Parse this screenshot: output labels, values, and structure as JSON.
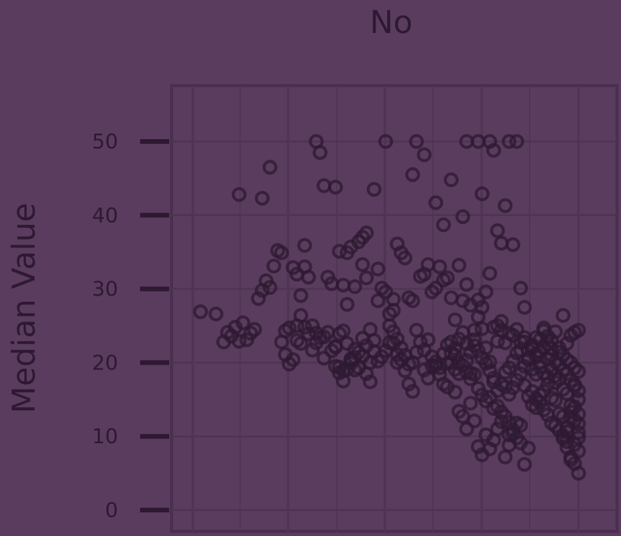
{
  "chart_data": {
    "type": "scatter",
    "title": "No",
    "ylabel": "Median Value",
    "xlabel": "",
    "ylim": [
      0,
      55
    ],
    "xlim": [
      0,
      100
    ],
    "yticks": [
      0,
      10,
      20,
      30,
      40,
      50
    ],
    "ytick_labels": [
      "0",
      "10",
      "20",
      "30",
      "40",
      "50"
    ],
    "grid": true,
    "colors": {
      "background": "#5a3d5e",
      "panel_border": "#4b2f50",
      "grid": "#4f3454",
      "point": "#2e1932",
      "text": "#2e1932"
    },
    "points": [
      [
        6,
        26.6
      ],
      [
        9,
        24.1
      ],
      [
        10,
        23.6
      ],
      [
        11,
        24.8
      ],
      [
        12,
        22.9
      ],
      [
        13,
        25.4
      ],
      [
        14,
        23.1
      ],
      [
        15,
        24.0
      ],
      [
        16,
        24.5
      ],
      [
        17,
        28.7
      ],
      [
        18,
        29.8
      ],
      [
        19,
        31.1
      ],
      [
        20,
        30.2
      ],
      [
        21,
        33.1
      ],
      [
        22,
        35.2
      ],
      [
        23,
        34.9
      ],
      [
        24,
        24.3
      ],
      [
        25,
        24.7
      ],
      [
        27,
        25.0
      ],
      [
        28,
        26.4
      ],
      [
        29,
        33.0
      ],
      [
        30,
        31.6
      ],
      [
        31,
        21.7
      ],
      [
        32,
        22.7
      ],
      [
        33,
        23.4
      ],
      [
        34,
        20.6
      ],
      [
        35,
        31.6
      ],
      [
        36,
        30.7
      ],
      [
        37,
        22.2
      ],
      [
        38,
        19.4
      ],
      [
        39,
        18.9
      ],
      [
        40,
        27.9
      ],
      [
        41,
        20.3
      ],
      [
        42,
        19.0
      ],
      [
        43,
        36.4
      ],
      [
        44,
        37.0
      ],
      [
        45,
        37.6
      ],
      [
        46,
        17.4
      ],
      [
        47,
        23.0
      ],
      [
        48,
        28.4
      ],
      [
        49,
        30.1
      ],
      [
        50,
        29.6
      ],
      [
        51,
        25.0
      ],
      [
        52,
        27.1
      ],
      [
        53,
        20.0
      ],
      [
        54,
        22.0
      ],
      [
        55,
        18.9
      ],
      [
        56,
        17.1
      ],
      [
        57,
        16.1
      ],
      [
        58,
        24.4
      ],
      [
        59,
        31.7
      ],
      [
        60,
        32.0
      ],
      [
        61,
        33.3
      ],
      [
        62,
        19.6
      ],
      [
        63,
        20.1
      ],
      [
        64,
        19.3
      ],
      [
        65,
        21.2
      ],
      [
        66,
        19.9
      ],
      [
        67,
        22.8
      ],
      [
        68,
        21.9
      ],
      [
        69,
        23.2
      ],
      [
        70,
        24.1
      ],
      [
        71,
        20.3
      ],
      [
        72,
        18.6
      ],
      [
        73,
        23.1
      ],
      [
        74,
        28.5
      ],
      [
        75,
        24.6
      ],
      [
        76,
        22.0
      ],
      [
        77,
        20.1
      ],
      [
        78,
        17.4
      ],
      [
        79,
        25.0
      ],
      [
        80,
        24.4
      ],
      [
        81,
        16.7
      ],
      [
        82,
        10.2
      ],
      [
        83,
        23.7
      ],
      [
        84,
        24.5
      ],
      [
        85,
        21.7
      ],
      [
        86,
        22.8
      ],
      [
        87,
        20.4
      ],
      [
        88,
        22.4
      ],
      [
        89,
        23.4
      ],
      [
        90,
        23.1
      ],
      [
        91,
        24.7
      ],
      [
        92,
        22.5
      ],
      [
        93,
        21.0
      ],
      [
        94,
        18.2
      ],
      [
        95,
        21.4
      ],
      [
        96,
        26.4
      ],
      [
        97,
        22.6
      ],
      [
        98,
        23.7
      ],
      [
        99,
        24.1
      ],
      [
        100,
        24.4
      ],
      [
        2,
        26.9
      ],
      [
        8,
        22.8
      ],
      [
        12,
        42.8
      ],
      [
        18,
        42.3
      ],
      [
        20,
        46.5
      ],
      [
        32,
        50.0
      ],
      [
        33,
        48.5
      ],
      [
        34,
        44.0
      ],
      [
        37,
        43.8
      ],
      [
        47,
        43.5
      ],
      [
        50,
        50.0
      ],
      [
        57,
        45.5
      ],
      [
        58,
        50.0
      ],
      [
        60,
        48.2
      ],
      [
        63,
        41.7
      ],
      [
        65,
        38.7
      ],
      [
        67,
        44.8
      ],
      [
        70,
        39.8
      ],
      [
        71,
        50.0
      ],
      [
        74,
        50.0
      ],
      [
        75,
        42.9
      ],
      [
        77,
        50.0
      ],
      [
        78,
        48.8
      ],
      [
        79,
        37.9
      ],
      [
        80,
        36.2
      ],
      [
        81,
        41.3
      ],
      [
        82,
        50.0
      ],
      [
        83,
        36.0
      ],
      [
        84,
        50.0
      ],
      [
        85,
        30.1
      ],
      [
        86,
        27.5
      ],
      [
        26,
        32.9
      ],
      [
        27,
        32.0
      ],
      [
        28,
        29.1
      ],
      [
        29,
        35.9
      ],
      [
        38,
        35.1
      ],
      [
        39,
        30.5
      ],
      [
        40,
        34.9
      ],
      [
        41,
        35.7
      ],
      [
        42,
        30.3
      ],
      [
        44,
        33.3
      ],
      [
        45,
        31.5
      ],
      [
        48,
        32.7
      ],
      [
        51,
        26.6
      ],
      [
        52,
        28.6
      ],
      [
        53,
        36.1
      ],
      [
        54,
        34.9
      ],
      [
        55,
        34.2
      ],
      [
        56,
        28.8
      ],
      [
        57,
        28.4
      ],
      [
        62,
        29.6
      ],
      [
        63,
        30.1
      ],
      [
        64,
        33.0
      ],
      [
        65,
        31.2
      ],
      [
        66,
        31.5
      ],
      [
        67,
        28.8
      ],
      [
        68,
        25.8
      ],
      [
        69,
        33.2
      ],
      [
        70,
        28.4
      ],
      [
        71,
        30.6
      ],
      [
        72,
        27.8
      ],
      [
        73,
        24.4
      ],
      [
        74,
        26.2
      ],
      [
        75,
        27.5
      ],
      [
        76,
        29.6
      ],
      [
        77,
        32.1
      ],
      [
        78,
        24.8
      ],
      [
        79,
        22.9
      ],
      [
        80,
        25.6
      ],
      [
        81,
        22.7
      ],
      [
        82,
        24.0
      ],
      [
        66,
        22.4
      ],
      [
        67,
        21.3
      ],
      [
        68,
        21.0
      ],
      [
        69,
        20.0
      ],
      [
        70,
        19.6
      ],
      [
        71,
        18.7
      ],
      [
        72,
        17.8
      ],
      [
        73,
        18.4
      ],
      [
        74,
        16.5
      ],
      [
        75,
        15.6
      ],
      [
        76,
        14.8
      ],
      [
        77,
        15.3
      ],
      [
        78,
        13.8
      ],
      [
        79,
        14.1
      ],
      [
        80,
        13.3
      ],
      [
        81,
        12.7
      ],
      [
        82,
        11.9
      ],
      [
        83,
        10.4
      ],
      [
        84,
        9.8
      ],
      [
        85,
        11.5
      ],
      [
        68,
        16.0
      ],
      [
        69,
        13.4
      ],
      [
        70,
        12.7
      ],
      [
        71,
        11.0
      ],
      [
        72,
        14.5
      ],
      [
        73,
        12.1
      ],
      [
        74,
        8.6
      ],
      [
        75,
        7.5
      ],
      [
        76,
        10.2
      ],
      [
        77,
        8.3
      ],
      [
        78,
        9.5
      ],
      [
        79,
        11.0
      ],
      [
        80,
        12.0
      ],
      [
        81,
        7.2
      ],
      [
        82,
        8.8
      ],
      [
        83,
        10.9
      ],
      [
        84,
        11.8
      ],
      [
        85,
        9.1
      ],
      [
        86,
        6.2
      ],
      [
        87,
        8.4
      ],
      [
        88,
        14.3
      ],
      [
        89,
        13.9
      ],
      [
        90,
        15.6
      ],
      [
        91,
        16.1
      ],
      [
        92,
        17.0
      ],
      [
        93,
        15.2
      ],
      [
        94,
        14.9
      ],
      [
        95,
        13.1
      ],
      [
        96,
        12.7
      ],
      [
        97,
        11.2
      ],
      [
        89,
        20.8
      ],
      [
        90,
        19.4
      ],
      [
        91,
        18.6
      ],
      [
        92,
        18.0
      ],
      [
        93,
        19.1
      ],
      [
        94,
        17.3
      ],
      [
        95,
        17.8
      ],
      [
        96,
        16.4
      ],
      [
        97,
        15.8
      ],
      [
        98,
        14.2
      ],
      [
        99,
        17.0
      ],
      [
        100,
        16.2
      ],
      [
        98,
        13.3
      ],
      [
        99,
        12.2
      ],
      [
        100,
        10.5
      ],
      [
        96,
        9.7
      ],
      [
        97,
        8.5
      ],
      [
        98,
        7.2
      ],
      [
        99,
        6.3
      ],
      [
        100,
        5.0
      ],
      [
        90,
        21.5
      ],
      [
        91,
        22.1
      ],
      [
        92,
        20.5
      ],
      [
        93,
        21.9
      ],
      [
        94,
        20.1
      ],
      [
        95,
        19.8
      ],
      [
        96,
        19.0
      ],
      [
        97,
        18.5
      ],
      [
        98,
        17.6
      ],
      [
        99,
        16.8
      ],
      [
        100,
        15.0
      ],
      [
        99,
        14.0
      ],
      [
        100,
        13.0
      ],
      [
        98,
        12.4
      ],
      [
        100,
        11.7
      ],
      [
        97,
        10.6
      ],
      [
        100,
        9.8
      ],
      [
        99,
        8.9
      ],
      [
        100,
        8.0
      ],
      [
        98,
        6.8
      ],
      [
        91,
        24.3
      ],
      [
        92,
        23.6
      ],
      [
        93,
        23.0
      ],
      [
        94,
        24.2
      ],
      [
        95,
        22.0
      ],
      [
        96,
        21.0
      ],
      [
        97,
        20.4
      ],
      [
        98,
        20.0
      ],
      [
        99,
        19.3
      ],
      [
        100,
        18.8
      ],
      [
        85,
        18.5
      ],
      [
        86,
        19.5
      ],
      [
        87,
        20.6
      ],
      [
        88,
        19.1
      ],
      [
        89,
        18.4
      ],
      [
        84,
        17.6
      ],
      [
        83,
        16.6
      ],
      [
        82,
        15.7
      ],
      [
        86,
        16.9
      ],
      [
        87,
        15.4
      ],
      [
        88,
        16.1
      ],
      [
        89,
        15.1
      ],
      [
        90,
        14.6
      ],
      [
        91,
        13.6
      ],
      [
        92,
        12.9
      ],
      [
        93,
        11.8
      ],
      [
        94,
        11.4
      ],
      [
        95,
        10.8
      ],
      [
        96,
        10.1
      ],
      [
        97,
        9.3
      ],
      [
        60,
        21.7
      ],
      [
        61,
        23.1
      ],
      [
        62,
        20.8
      ],
      [
        63,
        19.6
      ],
      [
        64,
        18.4
      ],
      [
        65,
        17.1
      ],
      [
        66,
        16.7
      ],
      [
        67,
        20.0
      ],
      [
        68,
        19.1
      ],
      [
        69,
        18.5
      ],
      [
        52,
        22.6
      ],
      [
        53,
        21.1
      ],
      [
        54,
        20.4
      ],
      [
        55,
        21.0
      ],
      [
        56,
        19.8
      ],
      [
        57,
        20.0
      ],
      [
        58,
        21.4
      ],
      [
        59,
        22.8
      ],
      [
        60,
        19.0
      ],
      [
        61,
        17.9
      ],
      [
        23,
        22.8
      ],
      [
        24,
        21.1
      ],
      [
        25,
        19.8
      ],
      [
        26,
        20.4
      ],
      [
        27,
        23.0
      ],
      [
        28,
        22.6
      ],
      [
        29,
        24.8
      ],
      [
        30,
        23.9
      ],
      [
        31,
        25.0
      ],
      [
        32,
        24.0
      ],
      [
        34,
        23.5
      ],
      [
        35,
        24.1
      ],
      [
        36,
        21.6
      ],
      [
        37,
        22.1
      ],
      [
        38,
        23.9
      ],
      [
        39,
        24.3
      ],
      [
        40,
        22.6
      ],
      [
        41,
        19.9
      ],
      [
        42,
        20.7
      ],
      [
        43,
        21.4
      ],
      [
        44,
        23.3
      ],
      [
        45,
        22.3
      ],
      [
        46,
        24.5
      ],
      [
        47,
        21.5
      ],
      [
        48,
        20.2
      ],
      [
        49,
        20.8
      ],
      [
        50,
        21.6
      ],
      [
        51,
        22.7
      ],
      [
        52,
        24.2
      ],
      [
        53,
        23.2
      ],
      [
        37,
        19.5
      ],
      [
        38,
        18.6
      ],
      [
        39,
        17.5
      ],
      [
        40,
        19.1
      ],
      [
        41,
        20.5
      ],
      [
        42,
        21.8
      ],
      [
        43,
        19.3
      ],
      [
        44,
        20.9
      ],
      [
        45,
        18.5
      ],
      [
        46,
        20.0
      ],
      [
        85,
        22.8
      ],
      [
        86,
        23.4
      ],
      [
        87,
        21.7
      ],
      [
        88,
        22.0
      ],
      [
        89,
        21.2
      ],
      [
        90,
        20.0
      ],
      [
        84,
        21.3
      ],
      [
        83,
        20.2
      ],
      [
        82,
        19.3
      ],
      [
        81,
        18.7
      ],
      [
        80,
        17.1
      ],
      [
        79,
        16.2
      ],
      [
        78,
        17.9
      ],
      [
        77,
        18.9
      ],
      [
        76,
        19.9
      ],
      [
        75,
        20.6
      ],
      [
        74,
        21.6
      ],
      [
        73,
        22.3
      ],
      [
        72,
        21.4
      ],
      [
        71,
        22.6
      ]
    ]
  }
}
